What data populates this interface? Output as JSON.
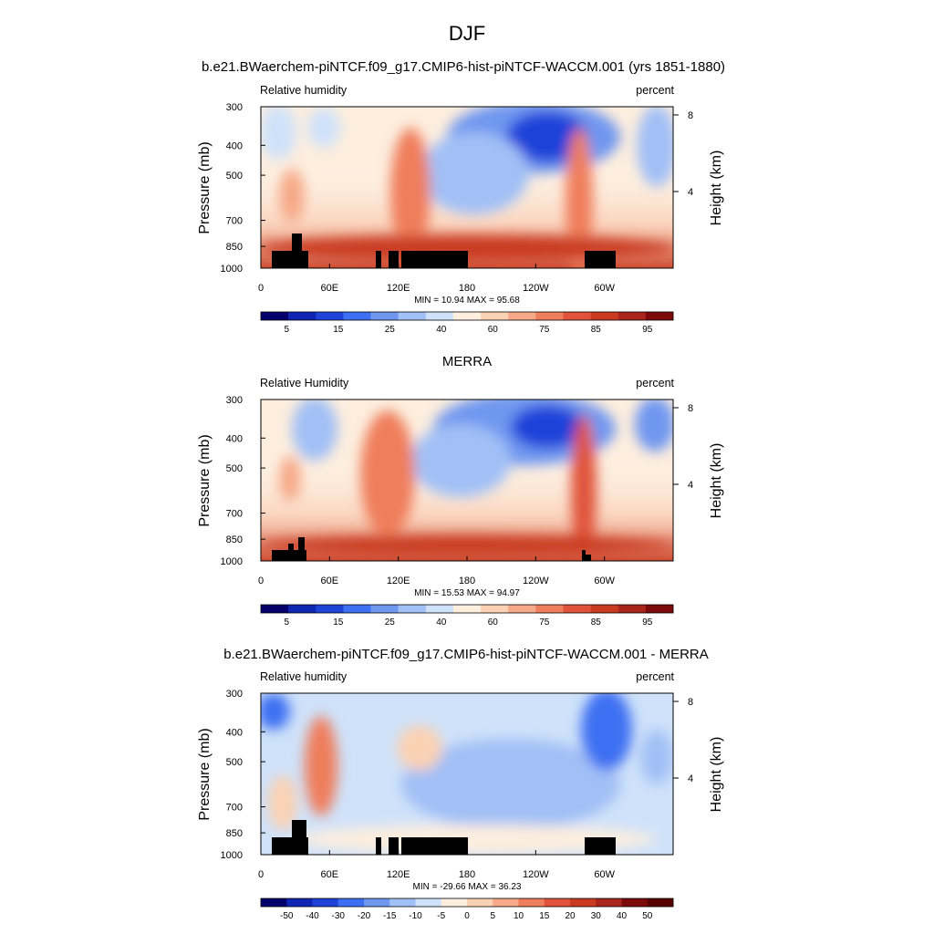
{
  "figure_title": "DJF",
  "chart_data": [
    {
      "type": "contour",
      "title": "b.e21.BWaerchem-piNTCF.f09_g17.CMIP6-hist-piNTCF-WACCM.001 (yrs 1851-1880)",
      "left_label": "Relative humidity",
      "right_label": "percent",
      "ylabel": "Pressure (mb)",
      "ylabel_right": "Height (km)",
      "y_ticks": [
        "300",
        "400",
        "500",
        "700",
        "850",
        "1000"
      ],
      "y_tick_values": [
        300,
        400,
        500,
        700,
        850,
        1000
      ],
      "right_ticks": [
        "8",
        "4"
      ],
      "right_tick_values": [
        8,
        4
      ],
      "x_ticks": [
        "0",
        "60E",
        "120E",
        "180",
        "120W",
        "60W"
      ],
      "x_tick_values": [
        0,
        60,
        120,
        180,
        240,
        300
      ],
      "xlim": [
        0,
        360
      ],
      "ylim": [
        1000,
        300
      ],
      "stats": "MIN = 10.94  MAX = 95.68",
      "colorbar_labels": [
        "5",
        "15",
        "25",
        "40",
        "60",
        "75",
        "85",
        "95"
      ],
      "colorbar_colors": [
        "#03006e",
        "#0f26b3",
        "#1f43d9",
        "#3d6ff2",
        "#6f97f0",
        "#a1c0f6",
        "#cfe2fa",
        "#fdeede",
        "#fbd1b3",
        "#f6a988",
        "#ef7e5c",
        "#e0533a",
        "#c93a20",
        "#a9241a",
        "#7c0a0a"
      ]
    },
    {
      "type": "contour",
      "title": "MERRA",
      "left_label": "Relative Humidity",
      "right_label": "percent",
      "ylabel": "Pressure (mb)",
      "ylabel_right": "Height (km)",
      "y_ticks": [
        "300",
        "400",
        "500",
        "700",
        "850",
        "1000"
      ],
      "y_tick_values": [
        300,
        400,
        500,
        700,
        850,
        1000
      ],
      "right_ticks": [
        "8",
        "4"
      ],
      "right_tick_values": [
        8,
        4
      ],
      "x_ticks": [
        "0",
        "60E",
        "120E",
        "180",
        "120W",
        "60W"
      ],
      "x_tick_values": [
        0,
        60,
        120,
        180,
        240,
        300
      ],
      "xlim": [
        0,
        360
      ],
      "ylim": [
        1000,
        300
      ],
      "stats": "MIN = 15.53  MAX = 94.97",
      "colorbar_labels": [
        "5",
        "15",
        "25",
        "40",
        "60",
        "75",
        "85",
        "95"
      ],
      "colorbar_colors": [
        "#03006e",
        "#0f26b3",
        "#1f43d9",
        "#3d6ff2",
        "#6f97f0",
        "#a1c0f6",
        "#cfe2fa",
        "#fdeede",
        "#fbd1b3",
        "#f6a988",
        "#ef7e5c",
        "#e0533a",
        "#c93a20",
        "#a9241a",
        "#7c0a0a"
      ]
    },
    {
      "type": "contour",
      "title": "b.e21.BWaerchem-piNTCF.f09_g17.CMIP6-hist-piNTCF-WACCM.001 - MERRA",
      "left_label": "Relative humidity",
      "right_label": "percent",
      "ylabel": "Pressure (mb)",
      "ylabel_right": "Height (km)",
      "y_ticks": [
        "300",
        "400",
        "500",
        "700",
        "850",
        "1000"
      ],
      "y_tick_values": [
        300,
        400,
        500,
        700,
        850,
        1000
      ],
      "right_ticks": [
        "8",
        "4"
      ],
      "right_tick_values": [
        8,
        4
      ],
      "x_ticks": [
        "0",
        "60E",
        "120E",
        "180",
        "120W",
        "60W"
      ],
      "x_tick_values": [
        0,
        60,
        120,
        180,
        240,
        300
      ],
      "xlim": [
        0,
        360
      ],
      "ylim": [
        1000,
        300
      ],
      "stats": "MIN = -29.66  MAX = 36.23",
      "colorbar_labels": [
        "-50",
        "-40",
        "-30",
        "-20",
        "-15",
        "-10",
        "-5",
        "0",
        "5",
        "10",
        "15",
        "20",
        "30",
        "40",
        "50"
      ],
      "colorbar_colors": [
        "#03006e",
        "#0f26b3",
        "#1f43d9",
        "#3d6ff2",
        "#6f97f0",
        "#a1c0f6",
        "#cfe2fa",
        "#fdeede",
        "#fbd1b3",
        "#f6a988",
        "#ef7e5c",
        "#e0533a",
        "#c93a20",
        "#a9241a",
        "#7c0a0a",
        "#5a0000"
      ]
    }
  ]
}
